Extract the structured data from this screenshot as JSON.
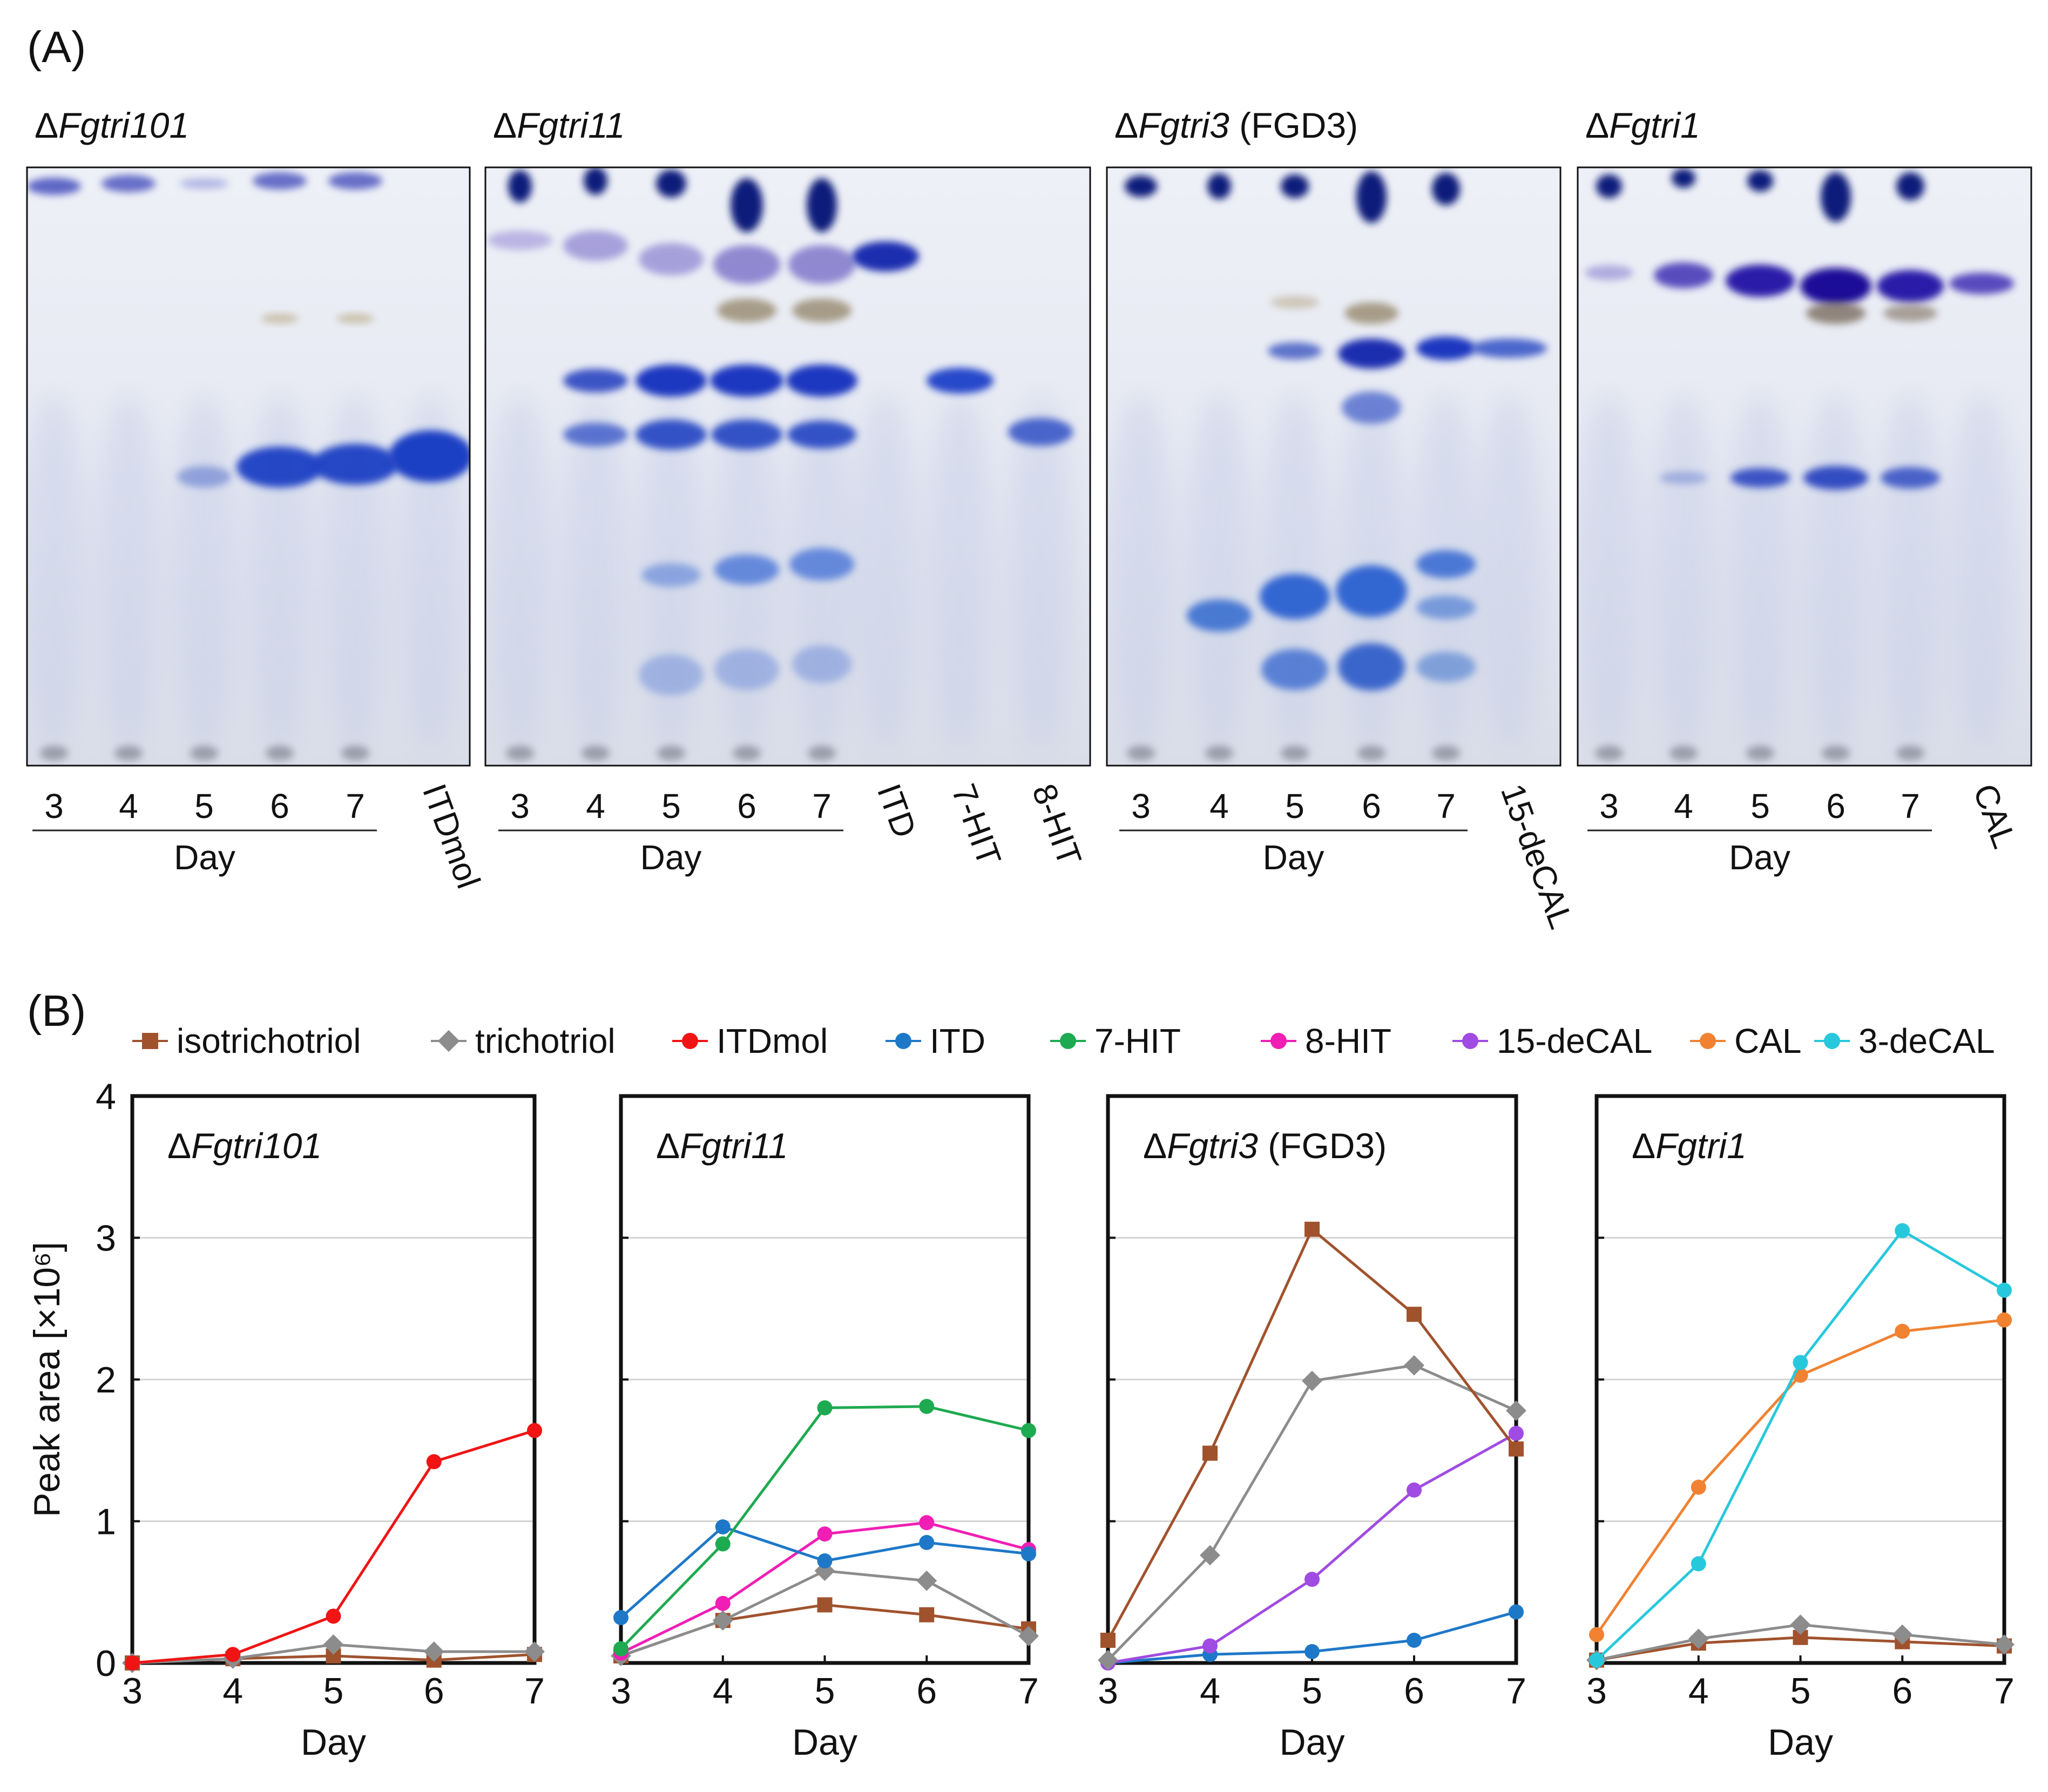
{
  "panel_a": {
    "label": "(A)",
    "day_axis_title": "Day",
    "plates": [
      {
        "strain_prefix": "Δ",
        "strain_name": "Fgtri101",
        "strain_suffix": "",
        "day_lanes": [
          "3",
          "4",
          "5",
          "6",
          "7"
        ],
        "standards": [
          "ITDmol"
        ]
      },
      {
        "strain_prefix": "Δ",
        "strain_name": "Fgtri11",
        "strain_suffix": "",
        "day_lanes": [
          "3",
          "4",
          "5",
          "6",
          "7"
        ],
        "standards": [
          "ITD",
          "7-HIT",
          "8-HIT"
        ]
      },
      {
        "strain_prefix": "Δ",
        "strain_name": "Fgtri3",
        "strain_suffix": " (FGD3)",
        "day_lanes": [
          "3",
          "4",
          "5",
          "6",
          "7"
        ],
        "standards": [
          "15-deCAL"
        ]
      },
      {
        "strain_prefix": "Δ",
        "strain_name": "Fgtri1",
        "strain_suffix": "",
        "day_lanes": [
          "3",
          "4",
          "5",
          "6",
          "7"
        ],
        "standards": [
          "CAL"
        ]
      }
    ]
  },
  "panel_b": {
    "label": "(B)",
    "legend": [
      {
        "name": "isotrichotriol",
        "color": "#a0522d",
        "marker": "square"
      },
      {
        "name": "trichotriol",
        "color": "#8c8c8c",
        "marker": "diamond"
      },
      {
        "name": "ITDmol",
        "color": "#f01414",
        "marker": "circle"
      },
      {
        "name": "ITD",
        "color": "#1e78c8",
        "marker": "circle"
      },
      {
        "name": "7-HIT",
        "color": "#1eaa50",
        "marker": "circle"
      },
      {
        "name": "8-HIT",
        "color": "#f01eb4",
        "marker": "circle"
      },
      {
        "name": "15-deCAL",
        "color": "#a04be1",
        "marker": "circle"
      },
      {
        "name": "CAL",
        "color": "#f08232",
        "marker": "circle"
      },
      {
        "name": "3-deCAL",
        "color": "#28c8dc",
        "marker": "circle"
      }
    ]
  },
  "chart_data": [
    {
      "type": "line",
      "title_prefix": "Δ",
      "title_name": "Fgtri101",
      "title_suffix": "",
      "xlabel": "Day",
      "ylabel": "Peak area [×10⁶]",
      "x": [
        3,
        4,
        5,
        6,
        7
      ],
      "xlim": [
        3,
        7
      ],
      "ylim": [
        0,
        4
      ],
      "yticks": [
        0,
        1,
        2,
        3,
        4
      ],
      "grid": true,
      "series": [
        {
          "name": "isotrichotriol",
          "values": [
            0.0,
            0.03,
            0.05,
            0.02,
            0.06
          ]
        },
        {
          "name": "trichotriol",
          "values": [
            0.0,
            0.03,
            0.13,
            0.08,
            0.08
          ]
        },
        {
          "name": "ITDmol",
          "values": [
            0.0,
            0.06,
            0.33,
            1.42,
            1.64
          ]
        }
      ]
    },
    {
      "type": "line",
      "title_prefix": "Δ",
      "title_name": "Fgtri11",
      "title_suffix": "",
      "xlabel": "Day",
      "ylabel": "Peak area [×10⁶]",
      "x": [
        3,
        4,
        5,
        6,
        7
      ],
      "xlim": [
        3,
        7
      ],
      "ylim": [
        0,
        4
      ],
      "yticks": [
        0,
        1,
        2,
        3,
        4
      ],
      "grid": true,
      "series": [
        {
          "name": "isotrichotriol",
          "values": [
            0.05,
            0.3,
            0.41,
            0.34,
            0.24
          ]
        },
        {
          "name": "trichotriol",
          "values": [
            0.05,
            0.3,
            0.65,
            0.58,
            0.19
          ]
        },
        {
          "name": "8-HIT",
          "values": [
            0.07,
            0.42,
            0.91,
            0.99,
            0.8
          ]
        },
        {
          "name": "ITD",
          "values": [
            0.32,
            0.96,
            0.72,
            0.85,
            0.77
          ]
        },
        {
          "name": "7-HIT",
          "values": [
            0.1,
            0.84,
            1.8,
            1.81,
            1.64
          ]
        }
      ]
    },
    {
      "type": "line",
      "title_prefix": "Δ",
      "title_name": "Fgtri3",
      "title_suffix": " (FGD3)",
      "xlabel": "Day",
      "ylabel": "Peak area [×10⁶]",
      "x": [
        3,
        4,
        5,
        6,
        7
      ],
      "xlim": [
        3,
        7
      ],
      "ylim": [
        0,
        4
      ],
      "yticks": [
        0,
        1,
        2,
        3,
        4
      ],
      "grid": true,
      "series": [
        {
          "name": "ITD",
          "values": [
            0.0,
            0.06,
            0.08,
            0.16,
            0.36
          ]
        },
        {
          "name": "15-deCAL",
          "values": [
            0.0,
            0.12,
            0.59,
            1.22,
            1.62
          ]
        },
        {
          "name": "trichotriol",
          "values": [
            0.02,
            0.76,
            1.99,
            2.1,
            1.78
          ]
        },
        {
          "name": "isotrichotriol",
          "values": [
            0.16,
            1.48,
            3.06,
            2.46,
            1.51
          ]
        }
      ]
    },
    {
      "type": "line",
      "title_prefix": "Δ",
      "title_name": "Fgtri1",
      "title_suffix": "",
      "xlabel": "Day",
      "ylabel": "Peak area [×10⁶]",
      "x": [
        3,
        4,
        5,
        6,
        7
      ],
      "xlim": [
        3,
        7
      ],
      "ylim": [
        0,
        4
      ],
      "yticks": [
        0,
        1,
        2,
        3,
        4
      ],
      "grid": true,
      "series": [
        {
          "name": "isotrichotriol",
          "values": [
            0.02,
            0.14,
            0.18,
            0.15,
            0.12
          ]
        },
        {
          "name": "trichotriol",
          "values": [
            0.02,
            0.17,
            0.27,
            0.2,
            0.13
          ]
        },
        {
          "name": "CAL",
          "values": [
            0.2,
            1.24,
            2.03,
            2.34,
            2.42
          ]
        },
        {
          "name": "3-deCAL",
          "values": [
            0.02,
            0.7,
            2.12,
            3.05,
            2.63
          ]
        }
      ]
    }
  ]
}
